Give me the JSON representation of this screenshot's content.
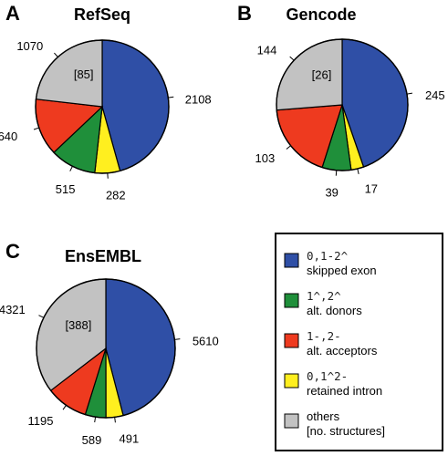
{
  "colors": {
    "skipped_exon": "#2f4fa6",
    "alt_donors": "#1f8f3a",
    "alt_acceptors": "#ee3a1f",
    "retained_intron": "#ffef1f",
    "others": "#c2c2c2"
  },
  "chart_data": [
    {
      "type": "pie",
      "panel": "A",
      "title": "RefSeq",
      "categories": [
        "skipped exon",
        "alt. donors",
        "alt. acceptors",
        "retained intron",
        "others"
      ],
      "values": [
        2108,
        515,
        640,
        282,
        1070
      ],
      "value_labels": [
        "2108",
        "515",
        "640",
        "282",
        "1070"
      ],
      "others_structures": "[85]",
      "start_angle_deg": 0,
      "order": [
        "skipped_exon",
        "retained_intron",
        "alt_donors",
        "alt_acceptors",
        "others"
      ]
    },
    {
      "type": "pie",
      "panel": "B",
      "title": "Gencode",
      "categories": [
        "skipped exon",
        "alt. donors",
        "alt. acceptors",
        "retained intron",
        "others"
      ],
      "values": [
        245,
        39,
        103,
        17,
        144
      ],
      "value_labels": [
        "245",
        "39",
        "103",
        "17",
        "144"
      ],
      "others_structures": "[26]",
      "start_angle_deg": 0,
      "order": [
        "skipped_exon",
        "retained_intron",
        "alt_donors",
        "alt_acceptors",
        "others"
      ]
    },
    {
      "type": "pie",
      "panel": "C",
      "title": "EnsEMBL",
      "categories": [
        "skipped exon",
        "alt. donors",
        "alt. acceptors",
        "retained intron",
        "others"
      ],
      "values": [
        5610,
        589,
        1195,
        491,
        4321
      ],
      "value_labels": [
        "5610",
        "589",
        "1195",
        "491",
        "4321"
      ],
      "others_structures": "[388]",
      "start_angle_deg": 0,
      "order": [
        "skipped_exon",
        "retained_intron",
        "alt_donors",
        "alt_acceptors",
        "others"
      ]
    }
  ],
  "legend": [
    {
      "key": "skipped_exon",
      "code": "0,1-2^",
      "label": "skipped exon"
    },
    {
      "key": "alt_donors",
      "code": "1^,2^",
      "label": "alt. donors"
    },
    {
      "key": "alt_acceptors",
      "code": "1-,2-",
      "label": "alt. acceptors"
    },
    {
      "key": "retained_intron",
      "code": "0,1^2-",
      "label": "retained intron"
    },
    {
      "key": "others",
      "code": "",
      "label": "others",
      "label2": "[no. structures]"
    }
  ]
}
